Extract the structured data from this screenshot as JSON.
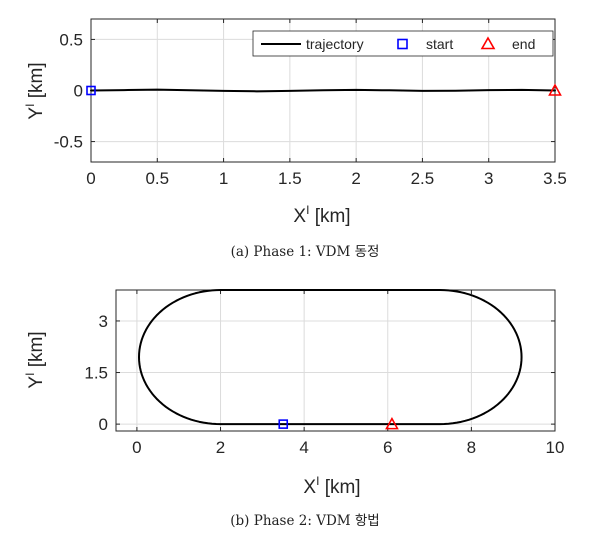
{
  "chart_data": [
    {
      "type": "line",
      "xlabel": "X",
      "xlabel_sup": "I",
      "xlabel_unit": " [km]",
      "ylabel": "Y",
      "ylabel_sup": "I",
      "ylabel_unit": " [km]",
      "xlim": [
        0,
        3.5
      ],
      "ylim": [
        -0.7,
        0.7
      ],
      "xticks": [
        0,
        0.5,
        1,
        1.5,
        2,
        2.5,
        3,
        3.5
      ],
      "xtick_labels": [
        "0",
        "0.5",
        "1",
        "1.5",
        "2",
        "2.5",
        "3",
        "3.5"
      ],
      "yticks": [
        -0.5,
        0,
        0.5
      ],
      "ytick_labels": [
        "-0.5",
        "0",
        "0.5"
      ],
      "grid": true,
      "legend": {
        "placement": "top-right",
        "entries": [
          {
            "label": "trajectory",
            "marker": "line",
            "color": "#000000"
          },
          {
            "label": "start",
            "marker": "square",
            "color": "#0000ff"
          },
          {
            "label": "end",
            "marker": "triangle",
            "color": "#ff0000"
          }
        ]
      },
      "series": [
        {
          "name": "trajectory",
          "color": "#000000",
          "x": [
            0,
            0.25,
            0.5,
            0.75,
            1.0,
            1.25,
            1.5,
            1.75,
            2.0,
            2.25,
            2.5,
            2.75,
            3.0,
            3.25,
            3.5
          ],
          "y": [
            0,
            0.004,
            0.008,
            0.003,
            -0.004,
            -0.008,
            -0.004,
            0.002,
            0.006,
            0.002,
            -0.004,
            -0.002,
            0.004,
            0.006,
            0
          ]
        }
      ],
      "start": {
        "x": 0,
        "y": 0
      },
      "end": {
        "x": 3.5,
        "y": 0
      },
      "caption": "(a) Phase 1: VDM 동정"
    },
    {
      "type": "line",
      "xlabel": "X",
      "xlabel_sup": "I",
      "xlabel_unit": " [km]",
      "ylabel": "Y",
      "ylabel_sup": "I",
      "ylabel_unit": " [km]",
      "xlim": [
        -0.5,
        10
      ],
      "ylim": [
        -0.2,
        3.9
      ],
      "xticks": [
        0,
        2,
        4,
        6,
        8,
        10
      ],
      "xtick_labels": [
        "0",
        "2",
        "4",
        "6",
        "8",
        "10"
      ],
      "yticks": [
        0,
        1.5,
        3
      ],
      "ytick_labels": [
        "0",
        "1.5",
        "3"
      ],
      "grid": true,
      "track": {
        "x_left": 2.0,
        "x_right": 7.25,
        "radius": 1.95,
        "center_y": 1.95
      },
      "series": [
        {
          "name": "trajectory",
          "color": "#000000"
        }
      ],
      "start": {
        "x": 3.5,
        "y": 0
      },
      "end": {
        "x": 6.1,
        "y": 0
      },
      "caption": "(b) Phase 2: VDM 항법"
    }
  ]
}
